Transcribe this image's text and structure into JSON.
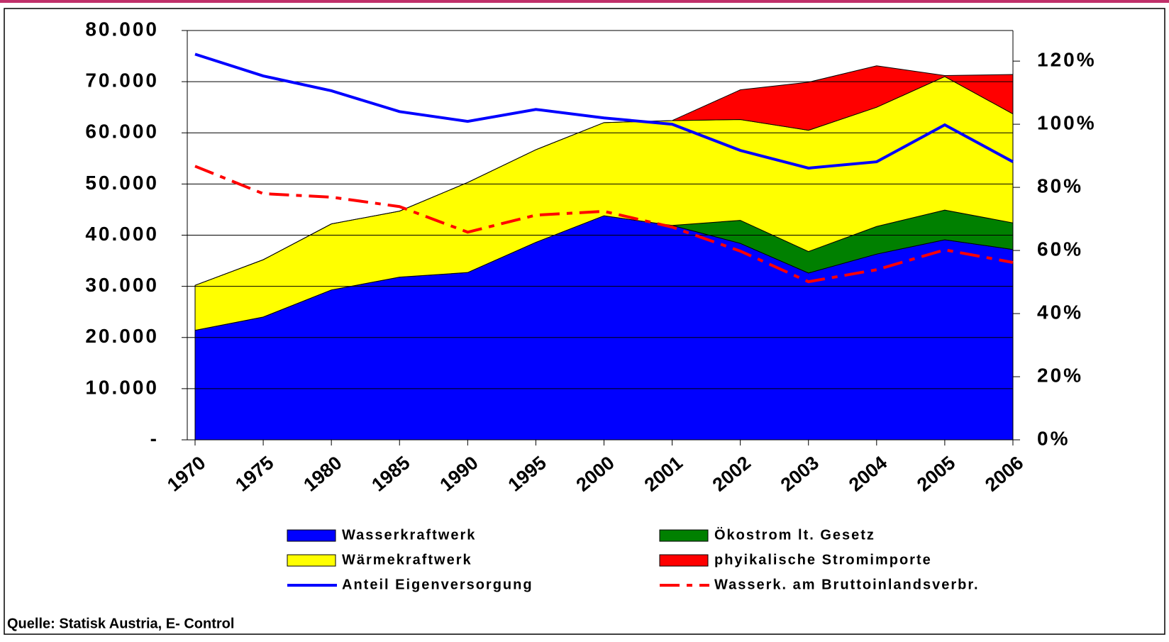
{
  "chart_data": {
    "type": "stacked_area_line",
    "categories": [
      "1970",
      "1975",
      "1980",
      "1985",
      "1990",
      "1995",
      "2000",
      "2001",
      "2002",
      "2003",
      "2004",
      "2005",
      "2006"
    ],
    "series": [
      {
        "name": "Wasserkraftwerk",
        "color": "#0000ff",
        "values": [
          21.4,
          24.0,
          29.3,
          31.8,
          32.7,
          38.6,
          43.8,
          41.9,
          38.4,
          32.6,
          36.3,
          39.1,
          37.2
        ]
      },
      {
        "name": "Ökostrom lt. Gesetz",
        "color": "#008000",
        "values": [
          0,
          0,
          0,
          0,
          0,
          0,
          0,
          0,
          4.5,
          4.2,
          5.4,
          5.8,
          5.2
        ]
      },
      {
        "name": "Wärmekraftwerk",
        "color": "#ffff00",
        "values": [
          8.8,
          11.2,
          12.9,
          12.9,
          17.6,
          18.1,
          18.2,
          20.5,
          19.7,
          23.7,
          23.3,
          26.1,
          21.3
        ]
      },
      {
        "name": "phyikalische Stromimporte",
        "color": "#ff0000",
        "values": [
          0,
          0,
          0,
          0,
          0,
          0,
          0,
          0,
          5.8,
          9.4,
          8.1,
          0.2,
          7.7
        ]
      },
      {
        "name": "Anteil Eigenversorgung",
        "color": "#0000ff",
        "axis": "y2",
        "dashed": false,
        "values": [
          122.2,
          115.3,
          110.6,
          104.0,
          100.9,
          104.7,
          102.0,
          100.0,
          91.7,
          86.1,
          88.1,
          99.8,
          88.1
        ]
      },
      {
        "name": "Wasserk. am Bruttoinlandsverbr.",
        "color": "#ff0000",
        "axis": "y2",
        "dashed": true,
        "values": [
          86.7,
          78.0,
          76.9,
          73.9,
          65.8,
          71.2,
          72.4,
          67.4,
          59.8,
          50.1,
          53.9,
          60.2,
          56.2
        ]
      }
    ],
    "ylim": [
      0,
      80
    ],
    "yticks": [
      {
        "value": 0,
        "label": "-"
      },
      {
        "value": 10,
        "label": "10.000"
      },
      {
        "value": 20,
        "label": "20.000"
      },
      {
        "value": 30,
        "label": "30.000"
      },
      {
        "value": 40,
        "label": "40.000"
      },
      {
        "value": 50,
        "label": "50.000"
      },
      {
        "value": 60,
        "label": "60.000"
      },
      {
        "value": 70,
        "label": "70.000"
      },
      {
        "value": 80,
        "label": "80.000"
      }
    ],
    "y2lim": [
      0,
      129.7
    ],
    "y2ticks": [
      {
        "value": 0,
        "label": "0%"
      },
      {
        "value": 20,
        "label": "20%"
      },
      {
        "value": 40,
        "label": "40%"
      },
      {
        "value": 60,
        "label": "60%"
      },
      {
        "value": 80,
        "label": "80%"
      },
      {
        "value": 100,
        "label": "100%"
      },
      {
        "value": 120,
        "label": "120%"
      }
    ],
    "grid": true,
    "source": "Quelle: Statisk Austria, E- Control"
  }
}
